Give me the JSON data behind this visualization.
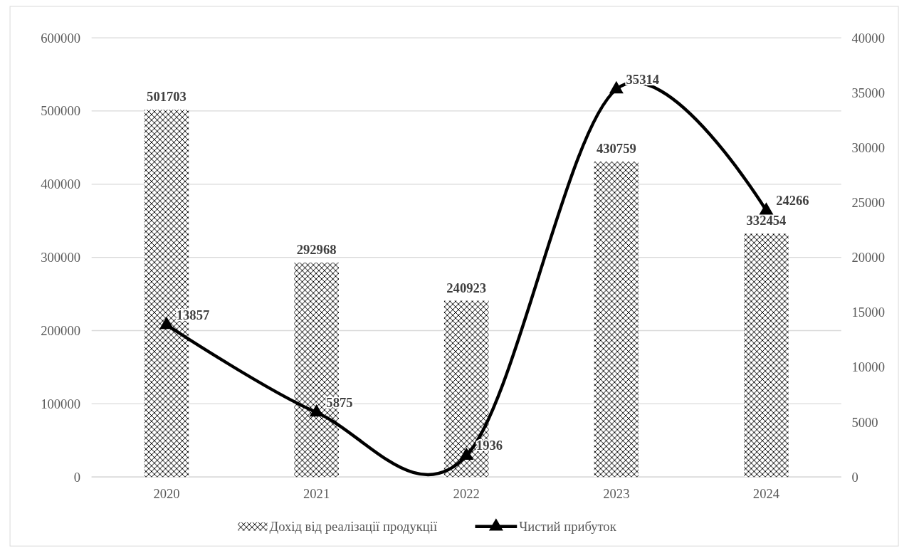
{
  "chart_data": {
    "type": "bar",
    "categories": [
      "2020",
      "2021",
      "2022",
      "2023",
      "2024"
    ],
    "series": [
      {
        "name": "Дохід від реалізації продукції",
        "color": "#000000",
        "values": [
          501703,
          292968,
          240923,
          430759,
          332454
        ]
      },
      {
        "name": "Чистий прибуток",
        "type": "line",
        "axis": "y2",
        "color": "#000000",
        "values": [
          13857,
          5875,
          1936,
          35314,
          24266
        ]
      }
    ],
    "ylim": [
      0,
      600000
    ],
    "yticks": [
      0,
      100000,
      200000,
      300000,
      400000,
      500000,
      600000
    ],
    "y2lim": [
      0,
      40000
    ],
    "y2ticks": [
      0,
      5000,
      10000,
      15000,
      20000,
      25000,
      30000,
      35000,
      40000
    ],
    "grid": "y",
    "legend": "bottom",
    "marker": "triangle",
    "data_labels": true
  }
}
